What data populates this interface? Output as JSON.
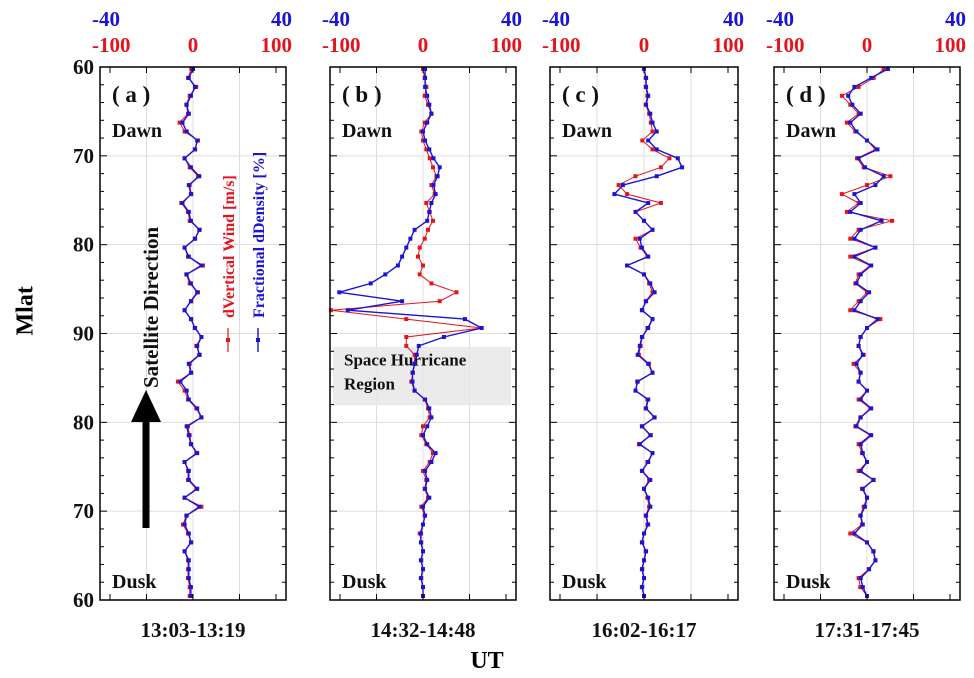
{
  "figure": {
    "y_axis_label": "Mlat",
    "x_axis_label": "UT",
    "legend": {
      "wind": "dVertical Wind [m/s]",
      "density": "Fractional dDensity [%]",
      "wind_color": "#e4141e",
      "density_color": "#1a14d4"
    },
    "satellite_direction": "Satellite Direction",
    "labels": {
      "dawn": "Dawn",
      "dusk": "Dusk"
    },
    "hurricane_label_1": "Space Hurricane",
    "hurricane_label_2": "Region",
    "y_ticks": [
      "60",
      "70",
      "80",
      "90",
      "80",
      "70",
      "60"
    ]
  },
  "chart_data": [
    {
      "type": "line",
      "panel": "( a )",
      "time_range": "13:03-13:19",
      "x_top_blue_ticks": [
        "-40",
        "40"
      ],
      "x_top_red_ticks": [
        "-100",
        "0",
        "100"
      ],
      "wind_xlim": [
        -100,
        100
      ],
      "density_xlim": [
        -40,
        40
      ],
      "y_positions": [
        0,
        1,
        2,
        3,
        4,
        5,
        6,
        7,
        8,
        9,
        10,
        11,
        12,
        13,
        14,
        15,
        16,
        17,
        18,
        19,
        20,
        21,
        22,
        23,
        24,
        25,
        26,
        27,
        28,
        29,
        30,
        31,
        32,
        33,
        34,
        35,
        36,
        37,
        38,
        39,
        40,
        41,
        42,
        43,
        44,
        45,
        46,
        47,
        48,
        49,
        50,
        51,
        52,
        53,
        54,
        55,
        56,
        57,
        58,
        59
      ],
      "series": [
        {
          "name": "dVertical Wind [m/s]",
          "values": [
            -2,
            -6,
            4,
            -4,
            -8,
            -6,
            -16,
            -10,
            6,
            2,
            -10,
            -4,
            6,
            -4,
            -2,
            -14,
            -6,
            -4,
            8,
            2,
            -10,
            -6,
            12,
            -8,
            -4,
            6,
            -2,
            -10,
            -2,
            2,
            10,
            4,
            8,
            -4,
            -2,
            -18,
            -10,
            -6,
            4,
            10,
            -6,
            -4,
            -2,
            4,
            -10,
            -6,
            -6,
            4,
            -10,
            10,
            -8,
            -12,
            -6,
            -2,
            -10,
            -6,
            -6,
            -6,
            -4,
            -4
          ]
        },
        {
          "name": "Fractional dDensity [%]",
          "values": [
            0,
            -2,
            1,
            -1,
            -3,
            -2,
            -5,
            -3,
            2,
            1,
            -4,
            -1,
            3,
            -2,
            -1,
            -5,
            -2,
            -1,
            3,
            1,
            -4,
            -2,
            4,
            -3,
            -1,
            2,
            -1,
            -4,
            -1,
            1,
            4,
            2,
            3,
            -2,
            -1,
            -6,
            -3,
            -2,
            2,
            4,
            -3,
            -2,
            -1,
            2,
            -4,
            -2,
            -2,
            2,
            -4,
            3,
            -3,
            -4,
            -2,
            -1,
            -4,
            -2,
            -2,
            -2,
            -1,
            -1
          ]
        }
      ]
    },
    {
      "type": "line",
      "panel": "( b )",
      "time_range": "14:32-14:48",
      "x_top_blue_ticks": [
        "-40",
        "40"
      ],
      "x_top_red_ticks": [
        "-100",
        "0",
        "100"
      ],
      "wind_xlim": [
        -100,
        100
      ],
      "density_xlim": [
        -40,
        40
      ],
      "y_positions": [
        0,
        1,
        2,
        3,
        4,
        5,
        6,
        7,
        8,
        9,
        10,
        11,
        12,
        13,
        14,
        15,
        16,
        17,
        18,
        19,
        20,
        21,
        22,
        23,
        24,
        25,
        26,
        27,
        28,
        29,
        30,
        31,
        32,
        33,
        34,
        35,
        36,
        37,
        38,
        39,
        40,
        41,
        42,
        43,
        44,
        45,
        46,
        47,
        48,
        49,
        50,
        51,
        52,
        53,
        54,
        55,
        56,
        57,
        58,
        59
      ],
      "series": [
        {
          "name": "dVertical Wind [m/s]",
          "values": [
            0,
            2,
            4,
            2,
            6,
            10,
            2,
            -2,
            0,
            4,
            8,
            12,
            16,
            10,
            14,
            4,
            8,
            12,
            6,
            2,
            -4,
            -6,
            0,
            -4,
            10,
            40,
            20,
            -110,
            -20,
            70,
            -20,
            -20,
            -10,
            -10,
            -12,
            -14,
            -10,
            2,
            6,
            8,
            0,
            -2,
            4,
            12,
            8,
            0,
            4,
            2,
            6,
            -2,
            2,
            0,
            -4,
            -2,
            0,
            -2,
            0,
            -2,
            0,
            0
          ]
        },
        {
          "name": "Fractional dDensity [%]",
          "values": [
            1,
            1,
            1,
            2,
            3,
            4,
            2,
            0,
            1,
            3,
            5,
            8,
            7,
            5,
            6,
            4,
            3,
            2,
            -4,
            -6,
            -8,
            -10,
            -12,
            -18,
            -25,
            -40,
            -10,
            -36,
            20,
            28,
            10,
            -2,
            -3,
            -4,
            -5,
            -5,
            -4,
            1,
            3,
            4,
            2,
            0,
            2,
            6,
            4,
            1,
            2,
            1,
            3,
            0,
            1,
            0,
            -1,
            -1,
            0,
            -1,
            0,
            -1,
            0,
            0
          ]
        }
      ]
    },
    {
      "type": "line",
      "panel": "( c )",
      "time_range": "16:02-16:17",
      "x_top_blue_ticks": [
        "-40",
        "40"
      ],
      "x_top_red_ticks": [
        "-100",
        "0",
        "100"
      ],
      "wind_xlim": [
        -100,
        100
      ],
      "density_xlim": [
        -40,
        40
      ],
      "y_positions": [
        0,
        1,
        2,
        3,
        4,
        5,
        6,
        7,
        8,
        9,
        10,
        11,
        12,
        13,
        14,
        15,
        16,
        17,
        18,
        19,
        20,
        21,
        22,
        23,
        24,
        25,
        26,
        27,
        28,
        29,
        30,
        31,
        32,
        33,
        34,
        35,
        36,
        37,
        38,
        39,
        40,
        41,
        42,
        43,
        44,
        45,
        46,
        47,
        48,
        49,
        50,
        51,
        52,
        53,
        54,
        55,
        56,
        57,
        58,
        59
      ],
      "series": [
        {
          "name": "dVertical Wind [m/s]",
          "values": [
            0,
            2,
            2,
            4,
            2,
            6,
            8,
            10,
            -2,
            10,
            30,
            20,
            -10,
            -30,
            -20,
            20,
            -10,
            0,
            10,
            -10,
            -4,
            4,
            -20,
            0,
            6,
            10,
            2,
            -2,
            10,
            4,
            -2,
            -4,
            -6,
            6,
            10,
            -8,
            -10,
            4,
            2,
            12,
            -2,
            8,
            -6,
            10,
            4,
            -2,
            6,
            0,
            4,
            6,
            2,
            4,
            0,
            -2,
            2,
            0,
            -2,
            0,
            -2,
            0
          ]
        },
        {
          "name": "Fractional dDensity [%]",
          "values": [
            0,
            1,
            1,
            2,
            1,
            3,
            4,
            6,
            2,
            6,
            16,
            18,
            6,
            -10,
            -14,
            2,
            -4,
            0,
            4,
            -2,
            -1,
            2,
            -8,
            0,
            3,
            5,
            1,
            -1,
            4,
            2,
            -1,
            -2,
            -3,
            2,
            4,
            -3,
            -4,
            2,
            1,
            5,
            -1,
            3,
            -2,
            4,
            2,
            -1,
            3,
            0,
            2,
            3,
            1,
            2,
            0,
            -1,
            1,
            0,
            -1,
            0,
            -1,
            0
          ]
        }
      ]
    },
    {
      "type": "line",
      "panel": "( d )",
      "time_range": "17:31-17:45",
      "x_top_blue_ticks": [
        "-40",
        "40"
      ],
      "x_top_red_ticks": [
        "-100",
        "0",
        "100"
      ],
      "wind_xlim": [
        -100,
        100
      ],
      "density_xlim": [
        -40,
        40
      ],
      "y_positions": [
        0,
        1,
        2,
        3,
        4,
        5,
        6,
        7,
        8,
        9,
        10,
        11,
        12,
        13,
        14,
        15,
        16,
        17,
        18,
        19,
        20,
        21,
        22,
        23,
        24,
        25,
        26,
        27,
        28,
        29,
        30,
        31,
        32,
        33,
        34,
        35,
        36,
        37,
        38,
        39,
        40,
        41,
        42,
        43,
        44,
        45,
        46,
        47,
        48,
        49,
        50,
        51,
        52,
        53,
        54,
        55,
        56,
        57,
        58,
        59
      ],
      "series": [
        {
          "name": "dVertical Wind [m/s]",
          "values": [
            20,
            8,
            -10,
            -30,
            -20,
            -10,
            -24,
            -14,
            0,
            10,
            -12,
            -4,
            28,
            0,
            -30,
            -10,
            -24,
            30,
            -10,
            -20,
            10,
            -20,
            4,
            -10,
            -14,
            0,
            -10,
            -20,
            16,
            0,
            -8,
            -10,
            -4,
            -16,
            -8,
            -10,
            0,
            -10,
            4,
            -8,
            -14,
            4,
            -10,
            -6,
            0,
            -10,
            8,
            -6,
            0,
            -4,
            -8,
            -6,
            -20,
            0,
            8,
            10,
            2,
            -10,
            -8,
            0
          ]
        },
        {
          "name": "Fractional dDensity [%]",
          "values": [
            10,
            2,
            -6,
            -9,
            -7,
            -3,
            -8,
            -5,
            0,
            5,
            -4,
            -1,
            8,
            4,
            -6,
            -3,
            -8,
            7,
            -3,
            -6,
            4,
            -6,
            2,
            -3,
            -5,
            1,
            -3,
            -6,
            5,
            0,
            -3,
            -4,
            -2,
            -5,
            -3,
            -4,
            0,
            -3,
            2,
            -3,
            -5,
            2,
            -3,
            -2,
            0,
            -3,
            3,
            -2,
            0,
            -1,
            -3,
            -2,
            -6,
            0,
            3,
            4,
            1,
            -3,
            -2,
            0
          ]
        }
      ]
    }
  ]
}
